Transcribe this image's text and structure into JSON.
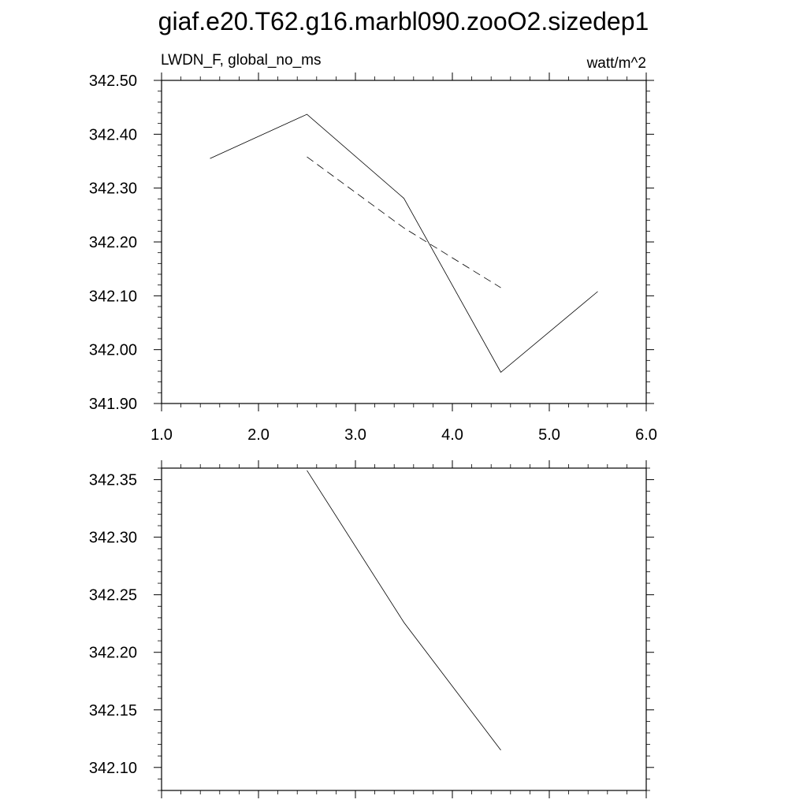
{
  "title": "giaf.e20.T62.g16.marbl090.zooO2.sizedep1",
  "chart_data": [
    {
      "type": "line",
      "left_label": "LWDN_F, global_no_ms",
      "right_label": "watt/m^2",
      "xlim": [
        1.0,
        6.0
      ],
      "ylim": [
        341.9,
        342.5
      ],
      "x_ticks": [
        "1.0",
        "2.0",
        "3.0",
        "4.0",
        "5.0",
        "6.0"
      ],
      "y_ticks": [
        "341.90",
        "342.00",
        "342.10",
        "342.20",
        "342.30",
        "342.40",
        "342.50"
      ],
      "series": [
        {
          "style": "solid",
          "x": [
            1.5,
            2.5,
            3.5,
            4.5,
            5.5
          ],
          "y": [
            342.355,
            342.437,
            342.281,
            341.958,
            342.108
          ]
        },
        {
          "style": "dashed",
          "x": [
            2.5,
            3.5,
            4.5
          ],
          "y": [
            342.358,
            342.226,
            342.115
          ]
        }
      ]
    },
    {
      "type": "line",
      "xlim": [
        1.0,
        6.0
      ],
      "ylim": [
        342.08,
        342.36
      ],
      "y_ticks": [
        "342.10",
        "342.15",
        "342.20",
        "342.25",
        "342.30",
        "342.35"
      ],
      "series": [
        {
          "style": "solid",
          "x": [
            2.5,
            3.5,
            4.5
          ],
          "y": [
            342.358,
            342.226,
            342.115
          ]
        }
      ]
    }
  ]
}
